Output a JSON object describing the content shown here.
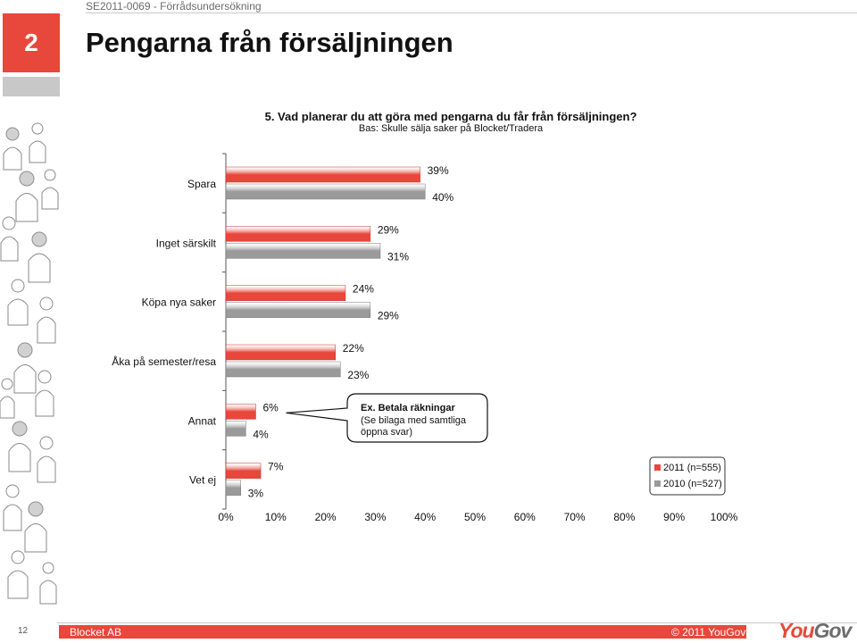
{
  "header": {
    "survey_id": "SE2011-0069 - Förrådsundersökning",
    "section_number": "2",
    "title": "Pengarna från försäljningen"
  },
  "chart_data": {
    "type": "bar",
    "orientation": "horizontal",
    "title": "5. Vad planerar du att göra med pengarna du får från försäljningen?",
    "subtitle": "Bas: Skulle sälja saker på Blocket/Tradera",
    "categories": [
      "Spara",
      "Inget särskilt",
      "Köpa nya saker",
      "Åka på semester/resa",
      "Annat",
      "Vet ej"
    ],
    "series": [
      {
        "name": "2011 (n=555)",
        "values": [
          39,
          29,
          24,
          22,
          6,
          7
        ],
        "color": "#e8473b"
      },
      {
        "name": "2010 (n=527)",
        "values": [
          40,
          31,
          29,
          23,
          4,
          3
        ],
        "color": "#9a9a9a"
      }
    ],
    "value_labels": [
      [
        "39%",
        "29%",
        "24%",
        "22%",
        "6%",
        "7%"
      ],
      [
        "40%",
        "31%",
        "29%",
        "23%",
        "4%",
        "3%"
      ]
    ],
    "xlim": [
      0,
      100
    ],
    "xticks": [
      "0%",
      "10%",
      "20%",
      "30%",
      "40%",
      "50%",
      "60%",
      "70%",
      "80%",
      "90%",
      "100%"
    ],
    "grid": false,
    "legend_position": "bottom-right",
    "callout": {
      "category": "Annat",
      "title": "Ex. Betala räkningar",
      "text_line1": "(Se bilaga med samtliga",
      "text_line2": "öppna svar)"
    }
  },
  "footer": {
    "page_number": "12",
    "client": "Blocket AB",
    "copyright": "© 2011 YouGov",
    "logo_you": "You",
    "logo_gov": "Gov"
  }
}
